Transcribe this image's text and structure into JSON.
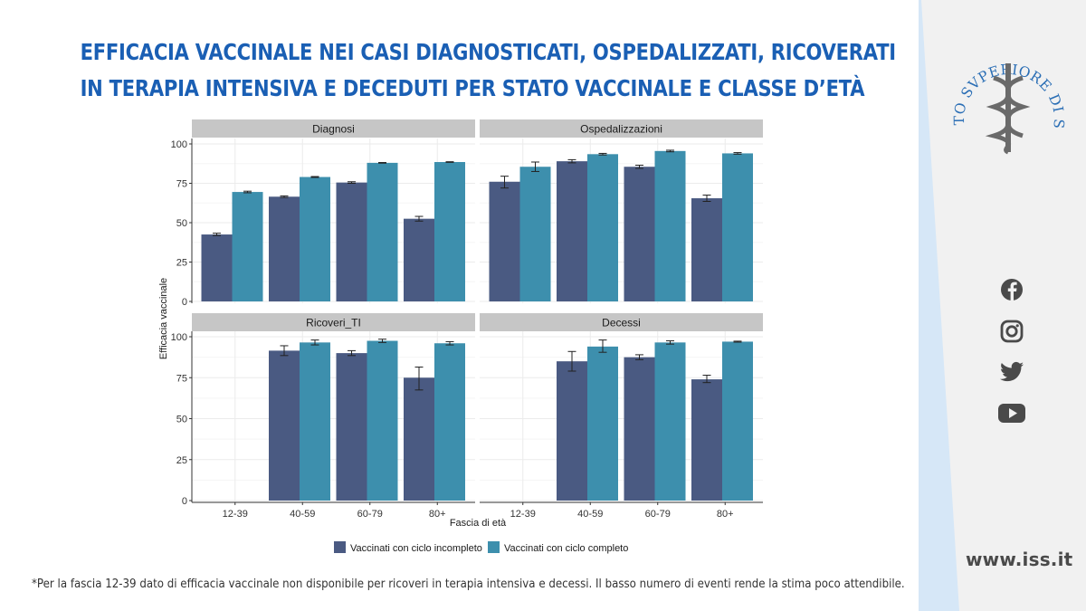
{
  "slide": {
    "title_line1": "EFFICACIA VACCINALE NEI CASI DIAGNOSTICATI, OSPEDALIZZATI, RICOVERATI",
    "title_line2": "IN TERAPIA INTENSIVA E DECEDUTI PER STATO VACCINALE E CLASSE D’ETÀ",
    "footnote": "*Per la fascia 12-39 dato di efficacia vaccinale non disponibile per ricoveri in terapia intensiva e decessi. Il basso numero di eventi rende la stima poco attendibile.",
    "website": "www.iss.it",
    "logo_text": "ISTITVTO SVPERIORE DI SANITÀ",
    "social_icons": [
      "facebook-icon",
      "instagram-icon",
      "twitter-icon",
      "youtube-icon"
    ]
  },
  "colors": {
    "title": "#1a5fb4",
    "incomplete": "#4a5a82",
    "complete": "#3d8fad",
    "strip": "#c6c6c6",
    "logo": "#2a6eb5",
    "sidebar_stripe": "#cfe3f5"
  },
  "chart_data": {
    "type": "bar",
    "xlabel": "Fascia di età",
    "ylabel": "Efficacia vaccinale",
    "ylim": [
      0,
      100
    ],
    "yticks": [
      0,
      25,
      50,
      75,
      100
    ],
    "categories": [
      "12-39",
      "40-59",
      "60-79",
      "80+"
    ],
    "legend_position": "bottom",
    "series_names": [
      "Vaccinati con ciclo incompleto",
      "Vaccinati con ciclo completo"
    ],
    "panels": [
      {
        "name": "Diagnosi",
        "series": [
          {
            "name": "Vaccinati con ciclo incompleto",
            "values": [
              42.5,
              66.5,
              75.5,
              52.5
            ],
            "lower": [
              41.8,
              66.0,
              75.0,
              51.0
            ],
            "upper": [
              43.3,
              67.0,
              76.0,
              54.0
            ]
          },
          {
            "name": "Vaccinati con ciclo completo",
            "values": [
              69.5,
              79.0,
              88.0,
              88.5
            ],
            "lower": [
              69.0,
              78.7,
              87.8,
              88.3
            ],
            "upper": [
              70.0,
              79.3,
              88.2,
              88.7
            ]
          }
        ]
      },
      {
        "name": "Ospedalizzazioni",
        "series": [
          {
            "name": "Vaccinati con ciclo incompleto",
            "values": [
              76.0,
              89.0,
              85.5,
              65.5
            ],
            "lower": [
              72.0,
              88.0,
              84.5,
              63.5
            ],
            "upper": [
              79.5,
              90.0,
              86.5,
              67.5
            ]
          },
          {
            "name": "Vaccinati con ciclo completo",
            "values": [
              85.5,
              93.5,
              95.5,
              94.0
            ],
            "lower": [
              82.5,
              93.0,
              95.0,
              93.5
            ],
            "upper": [
              88.5,
              94.0,
              96.0,
              94.5
            ]
          }
        ]
      },
      {
        "name": "Ricoveri_TI",
        "series": [
          {
            "name": "Vaccinati con ciclo incompleto",
            "values": [
              null,
              91.5,
              90.0,
              75.0
            ],
            "lower": [
              null,
              88.5,
              88.5,
              67.5
            ],
            "upper": [
              null,
              94.5,
              91.5,
              81.5
            ]
          },
          {
            "name": "Vaccinati con ciclo completo",
            "values": [
              null,
              96.5,
              97.5,
              96.0
            ],
            "lower": [
              null,
              95.0,
              96.5,
              95.0
            ],
            "upper": [
              null,
              98.0,
              98.5,
              97.0
            ]
          }
        ]
      },
      {
        "name": "Decessi",
        "series": [
          {
            "name": "Vaccinati con ciclo incompleto",
            "values": [
              null,
              85.0,
              87.5,
              74.0
            ],
            "lower": [
              null,
              79.0,
              86.0,
              72.0
            ],
            "upper": [
              null,
              91.0,
              89.0,
              76.5
            ]
          },
          {
            "name": "Vaccinati con ciclo completo",
            "values": [
              null,
              94.0,
              96.5,
              97.0
            ],
            "lower": [
              null,
              90.5,
              95.5,
              96.7
            ],
            "upper": [
              null,
              98.0,
              97.5,
              97.3
            ]
          }
        ]
      }
    ]
  }
}
